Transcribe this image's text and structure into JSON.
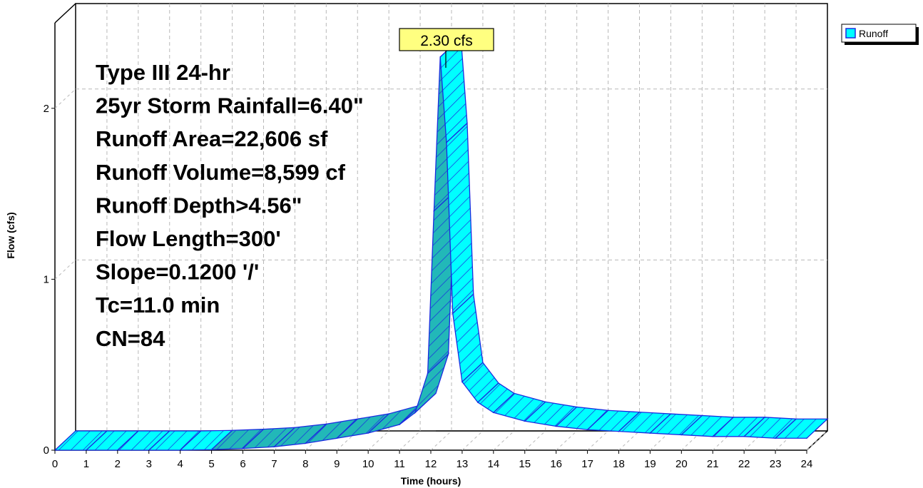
{
  "chart_data": {
    "type": "area",
    "title": "",
    "xlabel": "Time  (hours)",
    "ylabel": "Flow  (cfs)",
    "xlim": [
      0,
      24
    ],
    "ylim": [
      0,
      2.5
    ],
    "x_ticks": [
      "0",
      "1",
      "2",
      "3",
      "4",
      "5",
      "6",
      "7",
      "8",
      "9",
      "10",
      "11",
      "12",
      "13",
      "14",
      "15",
      "16",
      "17",
      "18",
      "19",
      "20",
      "21",
      "22",
      "23",
      "24"
    ],
    "y_ticks": [
      "0",
      "1",
      "2"
    ],
    "grid": true,
    "legend": {
      "position": "top-right"
    },
    "series": [
      {
        "name": "Runoff",
        "color": "#00FFFF",
        "x": [
          0,
          1,
          2,
          3,
          4,
          5,
          6,
          7,
          8,
          9,
          10,
          11,
          11.5,
          11.9,
          12.1,
          12.3,
          12.5,
          12.7,
          13,
          13.5,
          14,
          15,
          16,
          17,
          18,
          19,
          20,
          21,
          22,
          23,
          24
        ],
        "y": [
          0,
          0,
          0,
          0,
          0,
          0.003,
          0.01,
          0.02,
          0.04,
          0.07,
          0.1,
          0.15,
          0.22,
          0.45,
          1.4,
          2.3,
          1.8,
          0.8,
          0.4,
          0.28,
          0.22,
          0.17,
          0.14,
          0.12,
          0.11,
          0.1,
          0.09,
          0.08,
          0.08,
          0.07,
          0.07
        ]
      }
    ],
    "peak_label": "2.30 cfs",
    "annotations": [
      "Type III 24-hr",
      "25yr Storm Rainfall=6.40\"",
      "Runoff Area=22,606 sf",
      "Runoff Volume=8,599 cf",
      "Runoff Depth>4.56\"",
      "Flow Length=300'",
      "Slope=0.1200 '/'",
      "Tc=11.0 min",
      "CN=84"
    ]
  }
}
